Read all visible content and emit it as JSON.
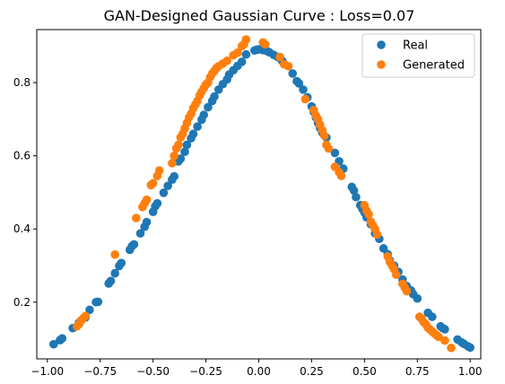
{
  "chart_data": {
    "type": "scatter",
    "title": "GAN-Designed Gaussian Curve : Loss=0.07",
    "xlabel": "",
    "ylabel": "",
    "xlim": [
      -1.05,
      1.05
    ],
    "ylim": [
      0.045,
      0.945
    ],
    "xticks": [
      -1.0,
      -0.75,
      -0.5,
      -0.25,
      0.0,
      0.25,
      0.5,
      0.75,
      1.0
    ],
    "xtick_labels": [
      "−1.00",
      "−0.75",
      "−0.50",
      "−0.25",
      "0.00",
      "0.25",
      "0.50",
      "0.75",
      "1.00"
    ],
    "yticks": [
      0.2,
      0.4,
      0.6,
      0.8
    ],
    "ytick_labels": [
      "0.2",
      "0.4",
      "0.6",
      "0.8"
    ],
    "grid": false,
    "legend_position": "top-right",
    "series": [
      {
        "name": "Real",
        "color": "#1f77b4",
        "points": [
          [
            -0.97,
            0.085
          ],
          [
            -0.94,
            0.096
          ],
          [
            -0.93,
            0.101
          ],
          [
            -0.88,
            0.129
          ],
          [
            -0.85,
            0.144
          ],
          [
            -0.82,
            0.158
          ],
          [
            -0.8,
            0.179
          ],
          [
            -0.77,
            0.2
          ],
          [
            -0.76,
            0.201
          ],
          [
            -0.71,
            0.251
          ],
          [
            -0.7,
            0.258
          ],
          [
            -0.68,
            0.279
          ],
          [
            -0.66,
            0.299
          ],
          [
            -0.65,
            0.307
          ],
          [
            -0.61,
            0.343
          ],
          [
            -0.6,
            0.353
          ],
          [
            -0.59,
            0.358
          ],
          [
            -0.56,
            0.388
          ],
          [
            -0.54,
            0.406
          ],
          [
            -0.53,
            0.419
          ],
          [
            -0.5,
            0.447
          ],
          [
            -0.49,
            0.462
          ],
          [
            -0.48,
            0.47
          ],
          [
            -0.45,
            0.499
          ],
          [
            -0.43,
            0.518
          ],
          [
            -0.41,
            0.535
          ],
          [
            -0.4,
            0.544
          ],
          [
            -0.38,
            0.585
          ],
          [
            -0.37,
            0.592
          ],
          [
            -0.35,
            0.611
          ],
          [
            -0.34,
            0.63
          ],
          [
            -0.32,
            0.648
          ],
          [
            -0.31,
            0.66
          ],
          [
            -0.29,
            0.68
          ],
          [
            -0.27,
            0.699
          ],
          [
            -0.26,
            0.712
          ],
          [
            -0.24,
            0.733
          ],
          [
            -0.22,
            0.75
          ],
          [
            -0.21,
            0.762
          ],
          [
            -0.19,
            0.781
          ],
          [
            -0.17,
            0.796
          ],
          [
            -0.15,
            0.809
          ],
          [
            -0.14,
            0.822
          ],
          [
            -0.12,
            0.834
          ],
          [
            -0.1,
            0.846
          ],
          [
            -0.08,
            0.857
          ],
          [
            -0.06,
            0.877
          ],
          [
            -0.02,
            0.888
          ],
          [
            -0.01,
            0.89
          ],
          [
            0.0,
            0.891
          ],
          [
            0.02,
            0.889
          ],
          [
            0.04,
            0.886
          ],
          [
            0.05,
            0.883
          ],
          [
            0.07,
            0.876
          ],
          [
            0.09,
            0.87
          ],
          [
            0.11,
            0.86
          ],
          [
            0.12,
            0.851
          ],
          [
            0.16,
            0.825
          ],
          [
            0.18,
            0.804
          ],
          [
            0.19,
            0.798
          ],
          [
            0.21,
            0.781
          ],
          [
            0.23,
            0.76
          ],
          [
            0.25,
            0.735
          ],
          [
            0.26,
            0.72
          ],
          [
            0.27,
            0.705
          ],
          [
            0.28,
            0.69
          ],
          [
            0.29,
            0.676
          ],
          [
            0.3,
            0.664
          ],
          [
            0.32,
            0.65
          ],
          [
            0.36,
            0.608
          ],
          [
            0.38,
            0.585
          ],
          [
            0.4,
            0.565
          ],
          [
            0.44,
            0.515
          ],
          [
            0.45,
            0.505
          ],
          [
            0.46,
            0.487
          ],
          [
            0.48,
            0.465
          ],
          [
            0.49,
            0.455
          ],
          [
            0.5,
            0.445
          ],
          [
            0.51,
            0.432
          ],
          [
            0.53,
            0.413
          ],
          [
            0.55,
            0.388
          ],
          [
            0.57,
            0.373
          ],
          [
            0.59,
            0.347
          ],
          [
            0.61,
            0.331
          ],
          [
            0.62,
            0.314
          ],
          [
            0.64,
            0.3
          ],
          [
            0.66,
            0.283
          ],
          [
            0.68,
            0.262
          ],
          [
            0.7,
            0.244
          ],
          [
            0.72,
            0.232
          ],
          [
            0.73,
            0.222
          ],
          [
            0.75,
            0.21
          ],
          [
            0.8,
            0.171
          ],
          [
            0.82,
            0.16
          ],
          [
            0.86,
            0.134
          ],
          [
            0.87,
            0.129
          ],
          [
            0.88,
            0.126
          ],
          [
            0.94,
            0.098
          ],
          [
            0.96,
            0.09
          ],
          [
            0.97,
            0.086
          ],
          [
            0.99,
            0.079
          ],
          [
            1.0,
            0.076
          ]
        ]
      },
      {
        "name": "Generated",
        "color": "#ff7f0e",
        "points": [
          [
            -0.86,
            0.134
          ],
          [
            -0.85,
            0.14
          ],
          [
            -0.84,
            0.15
          ],
          [
            -0.83,
            0.156
          ],
          [
            -0.82,
            0.162
          ],
          [
            -0.68,
            0.33
          ],
          [
            -0.58,
            0.43
          ],
          [
            -0.55,
            0.46
          ],
          [
            -0.54,
            0.47
          ],
          [
            -0.53,
            0.48
          ],
          [
            -0.51,
            0.52
          ],
          [
            -0.5,
            0.525
          ],
          [
            -0.48,
            0.545
          ],
          [
            -0.47,
            0.56
          ],
          [
            -0.41,
            0.58
          ],
          [
            -0.4,
            0.6
          ],
          [
            -0.39,
            0.62
          ],
          [
            -0.38,
            0.63
          ],
          [
            -0.37,
            0.65
          ],
          [
            -0.36,
            0.66
          ],
          [
            -0.35,
            0.675
          ],
          [
            -0.34,
            0.69
          ],
          [
            -0.33,
            0.705
          ],
          [
            -0.32,
            0.715
          ],
          [
            -0.31,
            0.73
          ],
          [
            -0.3,
            0.74
          ],
          [
            -0.29,
            0.75
          ],
          [
            -0.28,
            0.765
          ],
          [
            -0.27,
            0.775
          ],
          [
            -0.26,
            0.785
          ],
          [
            -0.25,
            0.795
          ],
          [
            -0.24,
            0.8
          ],
          [
            -0.23,
            0.815
          ],
          [
            -0.22,
            0.825
          ],
          [
            -0.21,
            0.832
          ],
          [
            -0.2,
            0.84
          ],
          [
            -0.19,
            0.845
          ],
          [
            -0.17,
            0.852
          ],
          [
            -0.15,
            0.86
          ],
          [
            -0.12,
            0.875
          ],
          [
            -0.1,
            0.882
          ],
          [
            -0.08,
            0.9
          ],
          [
            -0.07,
            0.905
          ],
          [
            -0.06,
            0.918
          ],
          [
            0.02,
            0.91
          ],
          [
            0.03,
            0.905
          ],
          [
            0.1,
            0.87
          ],
          [
            0.12,
            0.85
          ],
          [
            0.14,
            0.845
          ],
          [
            0.22,
            0.755
          ],
          [
            0.26,
            0.725
          ],
          [
            0.27,
            0.71
          ],
          [
            0.28,
            0.7
          ],
          [
            0.29,
            0.685
          ],
          [
            0.3,
            0.67
          ],
          [
            0.31,
            0.655
          ],
          [
            0.32,
            0.63
          ],
          [
            0.33,
            0.62
          ],
          [
            0.36,
            0.57
          ],
          [
            0.38,
            0.555
          ],
          [
            0.39,
            0.545
          ],
          [
            0.5,
            0.465
          ],
          [
            0.51,
            0.45
          ],
          [
            0.52,
            0.44
          ],
          [
            0.53,
            0.42
          ],
          [
            0.54,
            0.41
          ],
          [
            0.55,
            0.4
          ],
          [
            0.56,
            0.385
          ],
          [
            0.61,
            0.325
          ],
          [
            0.62,
            0.31
          ],
          [
            0.63,
            0.3
          ],
          [
            0.64,
            0.29
          ],
          [
            0.65,
            0.275
          ],
          [
            0.68,
            0.25
          ],
          [
            0.69,
            0.24
          ],
          [
            0.7,
            0.23
          ],
          [
            0.76,
            0.16
          ],
          [
            0.77,
            0.155
          ],
          [
            0.78,
            0.145
          ],
          [
            0.79,
            0.14
          ],
          [
            0.8,
            0.13
          ],
          [
            0.81,
            0.125
          ],
          [
            0.82,
            0.12
          ],
          [
            0.83,
            0.115
          ],
          [
            0.84,
            0.11
          ],
          [
            0.85,
            0.105
          ],
          [
            0.88,
            0.095
          ],
          [
            0.91,
            0.075
          ]
        ]
      }
    ]
  }
}
